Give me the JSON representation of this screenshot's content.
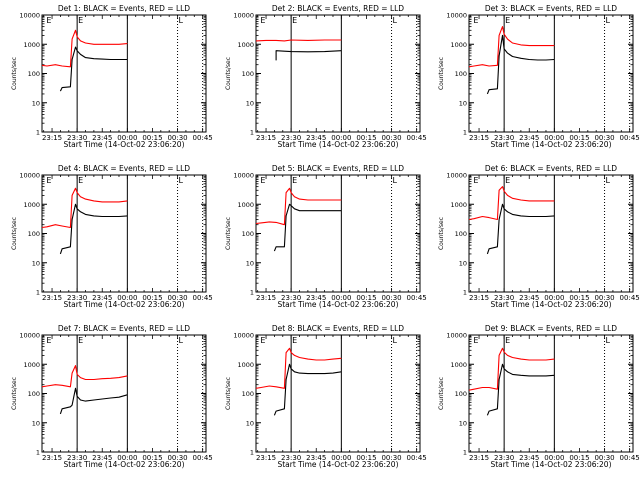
{
  "window": {
    "title": ""
  },
  "chart_data": [
    {
      "type": "line",
      "title": "Det 1: BLACK = Events, RED = LLD",
      "xlabel": "Start Time (14-Oct-02 23:06:20)",
      "ylabel": "Counts/sec",
      "yscale": "log",
      "ylim": [
        1,
        10000
      ],
      "xlim": [
        "23:09",
        "00:47"
      ],
      "x_ticks": [
        "23:15",
        "23:30",
        "23:45",
        "00:00",
        "00:15",
        "00:30",
        "00:45"
      ],
      "y_ticks": [
        "1",
        "10",
        "100",
        "1000",
        "10000"
      ],
      "markers": [
        "E",
        "E",
        "L"
      ],
      "grid": false,
      "series": [
        {
          "name": "Events",
          "color": "#000000",
          "x": [
            "23:09",
            "23:20",
            "23:21",
            "23:26",
            "23:27",
            "23:29",
            "23:30",
            "23:32",
            "23:35",
            "23:40",
            "23:45",
            "23:50",
            "23:55",
            "00:00"
          ],
          "values": [
            null,
            25,
            33,
            35,
            300,
            800,
            600,
            450,
            350,
            320,
            310,
            300,
            300,
            300
          ]
        },
        {
          "name": "LLD",
          "color": "#ff0000",
          "x": [
            "23:09",
            "23:12",
            "23:17",
            "23:21",
            "23:26",
            "23:27",
            "23:29",
            "23:30",
            "23:32",
            "23:35",
            "23:40",
            "23:45",
            "23:50",
            "23:55",
            "00:00"
          ],
          "values": [
            190,
            180,
            200,
            180,
            170,
            1500,
            3000,
            1800,
            1300,
            1100,
            1000,
            1000,
            1000,
            1000,
            1050
          ]
        }
      ]
    },
    {
      "type": "line",
      "title": "Det 2: BLACK = Events, RED = LLD",
      "xlabel": "Start Time (14-Oct-02 23:06:20)",
      "ylabel": "Counts/sec",
      "yscale": "log",
      "ylim": [
        1,
        10000
      ],
      "xlim": [
        "23:09",
        "00:47"
      ],
      "x_ticks": [
        "23:15",
        "23:30",
        "23:45",
        "00:00",
        "00:15",
        "00:30",
        "00:45"
      ],
      "y_ticks": [
        "1",
        "10",
        "100",
        "1000",
        "10000"
      ],
      "markers": [
        "E",
        "E",
        "L"
      ],
      "grid": false,
      "series": [
        {
          "name": "Events",
          "color": "#000000",
          "x": [
            "23:09",
            "23:21",
            "23:21",
            "23:26",
            "23:30",
            "23:40",
            "23:50",
            "00:00"
          ],
          "values": [
            null,
            280,
            600,
            580,
            560,
            550,
            560,
            600
          ]
        },
        {
          "name": "LLD",
          "color": "#ff0000",
          "x": [
            "23:09",
            "23:15",
            "23:21",
            "23:26",
            "23:30",
            "23:40",
            "23:50",
            "00:00"
          ],
          "values": [
            1300,
            1350,
            1350,
            1300,
            1400,
            1350,
            1400,
            1400
          ]
        }
      ]
    },
    {
      "type": "line",
      "title": "Det 3: BLACK = Events, RED = LLD",
      "xlabel": "Start Time (14-Oct-02 23:06:20)",
      "ylabel": "Counts/sec",
      "yscale": "log",
      "ylim": [
        1,
        10000
      ],
      "xlim": [
        "23:09",
        "00:47"
      ],
      "x_ticks": [
        "23:15",
        "23:30",
        "23:45",
        "00:00",
        "00:15",
        "00:30",
        "00:45"
      ],
      "y_ticks": [
        "1",
        "10",
        "100",
        "1000",
        "10000"
      ],
      "markers": [
        "E",
        "E",
        "L"
      ],
      "grid": false,
      "series": [
        {
          "name": "Events",
          "color": "#000000",
          "x": [
            "23:09",
            "23:20",
            "23:21",
            "23:26",
            "23:27",
            "23:29",
            "23:30",
            "23:32",
            "23:35",
            "23:40",
            "23:45",
            "23:50",
            "23:55",
            "00:00"
          ],
          "values": [
            null,
            20,
            28,
            30,
            400,
            2000,
            700,
            500,
            380,
            330,
            300,
            290,
            290,
            300
          ]
        },
        {
          "name": "LLD",
          "color": "#ff0000",
          "x": [
            "23:09",
            "23:12",
            "23:17",
            "23:21",
            "23:26",
            "23:27",
            "23:29",
            "23:30",
            "23:32",
            "23:35",
            "23:40",
            "23:45",
            "23:50",
            "23:55",
            "00:00"
          ],
          "values": [
            170,
            180,
            200,
            180,
            190,
            2000,
            4000,
            2200,
            1500,
            1100,
            950,
            900,
            900,
            900,
            900
          ]
        }
      ]
    },
    {
      "type": "line",
      "title": "Det 4: BLACK = Events, RED = LLD",
      "xlabel": "Start Time (14-Oct-02 23:06:20)",
      "ylabel": "Counts/sec",
      "yscale": "log",
      "ylim": [
        1,
        10000
      ],
      "xlim": [
        "23:09",
        "00:47"
      ],
      "x_ticks": [
        "23:15",
        "23:30",
        "23:45",
        "00:00",
        "00:15",
        "00:30",
        "00:45"
      ],
      "y_ticks": [
        "1",
        "10",
        "100",
        "1000",
        "10000"
      ],
      "markers": [
        "E",
        "E",
        "L"
      ],
      "grid": false,
      "series": [
        {
          "name": "Events",
          "color": "#000000",
          "x": [
            "23:09",
            "23:20",
            "23:21",
            "23:26",
            "23:27",
            "23:29",
            "23:30",
            "23:32",
            "23:35",
            "23:40",
            "23:45",
            "23:50",
            "23:55",
            "00:00"
          ],
          "values": [
            null,
            20,
            30,
            35,
            300,
            1000,
            700,
            550,
            450,
            400,
            380,
            380,
            380,
            400
          ]
        },
        {
          "name": "LLD",
          "color": "#ff0000",
          "x": [
            "23:09",
            "23:12",
            "23:17",
            "23:21",
            "23:26",
            "23:27",
            "23:29",
            "23:30",
            "23:32",
            "23:35",
            "23:40",
            "23:45",
            "23:50",
            "23:55",
            "00:00"
          ],
          "values": [
            160,
            170,
            200,
            180,
            160,
            2000,
            3500,
            2500,
            1800,
            1500,
            1300,
            1200,
            1200,
            1200,
            1300
          ]
        }
      ]
    },
    {
      "type": "line",
      "title": "Det 5: BLACK = Events, RED = LLD",
      "xlabel": "Start Time (14-Oct-02 23:06:20)",
      "ylabel": "Counts/sec",
      "yscale": "log",
      "ylim": [
        1,
        10000
      ],
      "xlim": [
        "23:09",
        "00:47"
      ],
      "x_ticks": [
        "23:15",
        "23:30",
        "23:45",
        "00:00",
        "00:15",
        "00:30",
        "00:45"
      ],
      "y_ticks": [
        "1",
        "10",
        "100",
        "1000",
        "10000"
      ],
      "markers": [
        "E",
        "E",
        "L"
      ],
      "grid": false,
      "series": [
        {
          "name": "Events",
          "color": "#000000",
          "x": [
            "23:09",
            "23:20",
            "23:21",
            "23:26",
            "23:27",
            "23:29",
            "23:30",
            "23:32",
            "23:35",
            "23:40",
            "23:45",
            "23:50",
            "23:55",
            "00:00"
          ],
          "values": [
            null,
            25,
            35,
            35,
            400,
            1000,
            900,
            700,
            600,
            600,
            600,
            600,
            600,
            600
          ]
        },
        {
          "name": "LLD",
          "color": "#ff0000",
          "x": [
            "23:09",
            "23:12",
            "23:17",
            "23:21",
            "23:26",
            "23:27",
            "23:29",
            "23:30",
            "23:32",
            "23:35",
            "23:40",
            "23:45",
            "23:50",
            "23:55",
            "00:00"
          ],
          "values": [
            220,
            230,
            250,
            240,
            200,
            2500,
            3500,
            2500,
            1800,
            1500,
            1400,
            1400,
            1400,
            1400,
            1400
          ]
        }
      ]
    },
    {
      "type": "line",
      "title": "Det 6: BLACK = Events, RED = LLD",
      "xlabel": "Start Time (14-Oct-02 23:06:20)",
      "ylabel": "Counts/sec",
      "yscale": "log",
      "ylim": [
        1,
        10000
      ],
      "xlim": [
        "23:09",
        "00:47"
      ],
      "x_ticks": [
        "23:15",
        "23:30",
        "23:45",
        "00:00",
        "00:15",
        "00:30",
        "00:45"
      ],
      "y_ticks": [
        "1",
        "10",
        "100",
        "1000",
        "10000"
      ],
      "markers": [
        "E",
        "E",
        "L"
      ],
      "grid": false,
      "series": [
        {
          "name": "Events",
          "color": "#000000",
          "x": [
            "23:09",
            "23:20",
            "23:21",
            "23:26",
            "23:27",
            "23:29",
            "23:30",
            "23:32",
            "23:35",
            "23:40",
            "23:45",
            "23:50",
            "23:55",
            "00:00"
          ],
          "values": [
            null,
            20,
            30,
            35,
            300,
            1000,
            700,
            550,
            450,
            400,
            380,
            380,
            380,
            400
          ]
        },
        {
          "name": "LLD",
          "color": "#ff0000",
          "x": [
            "23:09",
            "23:12",
            "23:17",
            "23:21",
            "23:26",
            "23:27",
            "23:29",
            "23:30",
            "23:32",
            "23:35",
            "23:40",
            "23:45",
            "23:50",
            "23:55",
            "00:00"
          ],
          "values": [
            300,
            320,
            380,
            350,
            300,
            3000,
            4000,
            2800,
            2000,
            1600,
            1400,
            1300,
            1300,
            1300,
            1300
          ]
        }
      ]
    },
    {
      "type": "line",
      "title": "Det 7: BLACK = Events, RED = LLD",
      "xlabel": "Start Time (14-Oct-02 23:06:20)",
      "ylabel": "Counts/sec",
      "yscale": "log",
      "ylim": [
        1,
        10000
      ],
      "xlim": [
        "23:09",
        "00:47"
      ],
      "x_ticks": [
        "23:15",
        "23:30",
        "23:45",
        "00:00",
        "00:15",
        "00:30",
        "00:45"
      ],
      "y_ticks": [
        "1",
        "10",
        "100",
        "1000",
        "10000"
      ],
      "markers": [
        "E",
        "E",
        "L"
      ],
      "grid": false,
      "series": [
        {
          "name": "Events",
          "color": "#000000",
          "x": [
            "23:09",
            "23:20",
            "23:21",
            "23:26",
            "23:27",
            "23:29",
            "23:30",
            "23:32",
            "23:35",
            "23:40",
            "23:45",
            "23:50",
            "23:55",
            "00:00"
          ],
          "values": [
            null,
            20,
            30,
            35,
            40,
            150,
            80,
            60,
            55,
            60,
            65,
            70,
            75,
            90
          ]
        },
        {
          "name": "LLD",
          "color": "#ff0000",
          "x": [
            "23:09",
            "23:12",
            "23:17",
            "23:21",
            "23:26",
            "23:27",
            "23:29",
            "23:30",
            "23:32",
            "23:35",
            "23:40",
            "23:45",
            "23:50",
            "23:55",
            "00:00"
          ],
          "values": [
            170,
            180,
            200,
            190,
            170,
            500,
            900,
            450,
            350,
            300,
            300,
            320,
            330,
            350,
            400
          ]
        }
      ]
    },
    {
      "type": "line",
      "title": "Det 8: BLACK = Events, RED = LLD",
      "xlabel": "Start Time (14-Oct-02 23:06:20)",
      "ylabel": "Counts/sec",
      "yscale": "log",
      "ylim": [
        1,
        10000
      ],
      "xlim": [
        "23:09",
        "00:47"
      ],
      "x_ticks": [
        "23:15",
        "23:30",
        "23:45",
        "00:00",
        "00:15",
        "00:30",
        "00:45"
      ],
      "y_ticks": [
        "1",
        "10",
        "100",
        "1000",
        "10000"
      ],
      "markers": [
        "E",
        "E",
        "L"
      ],
      "grid": false,
      "series": [
        {
          "name": "Events",
          "color": "#000000",
          "x": [
            "23:09",
            "23:20",
            "23:21",
            "23:26",
            "23:27",
            "23:29",
            "23:30",
            "23:32",
            "23:35",
            "23:40",
            "23:45",
            "23:50",
            "23:55",
            "00:00"
          ],
          "values": [
            null,
            18,
            25,
            30,
            300,
            1000,
            700,
            550,
            500,
            480,
            480,
            480,
            500,
            550
          ]
        },
        {
          "name": "LLD",
          "color": "#ff0000",
          "x": [
            "23:09",
            "23:12",
            "23:17",
            "23:21",
            "23:26",
            "23:27",
            "23:29",
            "23:30",
            "23:32",
            "23:35",
            "23:40",
            "23:45",
            "23:50",
            "23:55",
            "00:00"
          ],
          "values": [
            150,
            160,
            180,
            170,
            150,
            2500,
            3500,
            2500,
            2000,
            1700,
            1500,
            1400,
            1400,
            1500,
            1600
          ]
        }
      ]
    },
    {
      "type": "line",
      "title": "Det 9: BLACK = Events, RED = LLD",
      "xlabel": "Start Time (14-Oct-02 23:06:20)",
      "ylabel": "Counts/sec",
      "yscale": "log",
      "ylim": [
        1,
        10000
      ],
      "xlim": [
        "23:09",
        "00:47"
      ],
      "x_ticks": [
        "23:15",
        "23:30",
        "23:45",
        "00:00",
        "00:15",
        "00:30",
        "00:45"
      ],
      "y_ticks": [
        "1",
        "10",
        "100",
        "1000",
        "10000"
      ],
      "markers": [
        "E",
        "E",
        "L"
      ],
      "grid": false,
      "series": [
        {
          "name": "Events",
          "color": "#000000",
          "x": [
            "23:09",
            "23:20",
            "23:21",
            "23:26",
            "23:27",
            "23:29",
            "23:30",
            "23:32",
            "23:35",
            "23:40",
            "23:45",
            "23:50",
            "23:55",
            "00:00"
          ],
          "values": [
            null,
            18,
            25,
            30,
            300,
            1000,
            700,
            550,
            450,
            420,
            400,
            400,
            400,
            420
          ]
        },
        {
          "name": "LLD",
          "color": "#ff0000",
          "x": [
            "23:09",
            "23:12",
            "23:17",
            "23:21",
            "23:26",
            "23:27",
            "23:29",
            "23:30",
            "23:32",
            "23:35",
            "23:40",
            "23:45",
            "23:50",
            "23:55",
            "00:00"
          ],
          "values": [
            130,
            140,
            160,
            160,
            140,
            2000,
            3500,
            2600,
            2000,
            1700,
            1500,
            1400,
            1400,
            1400,
            1500
          ]
        }
      ]
    }
  ]
}
